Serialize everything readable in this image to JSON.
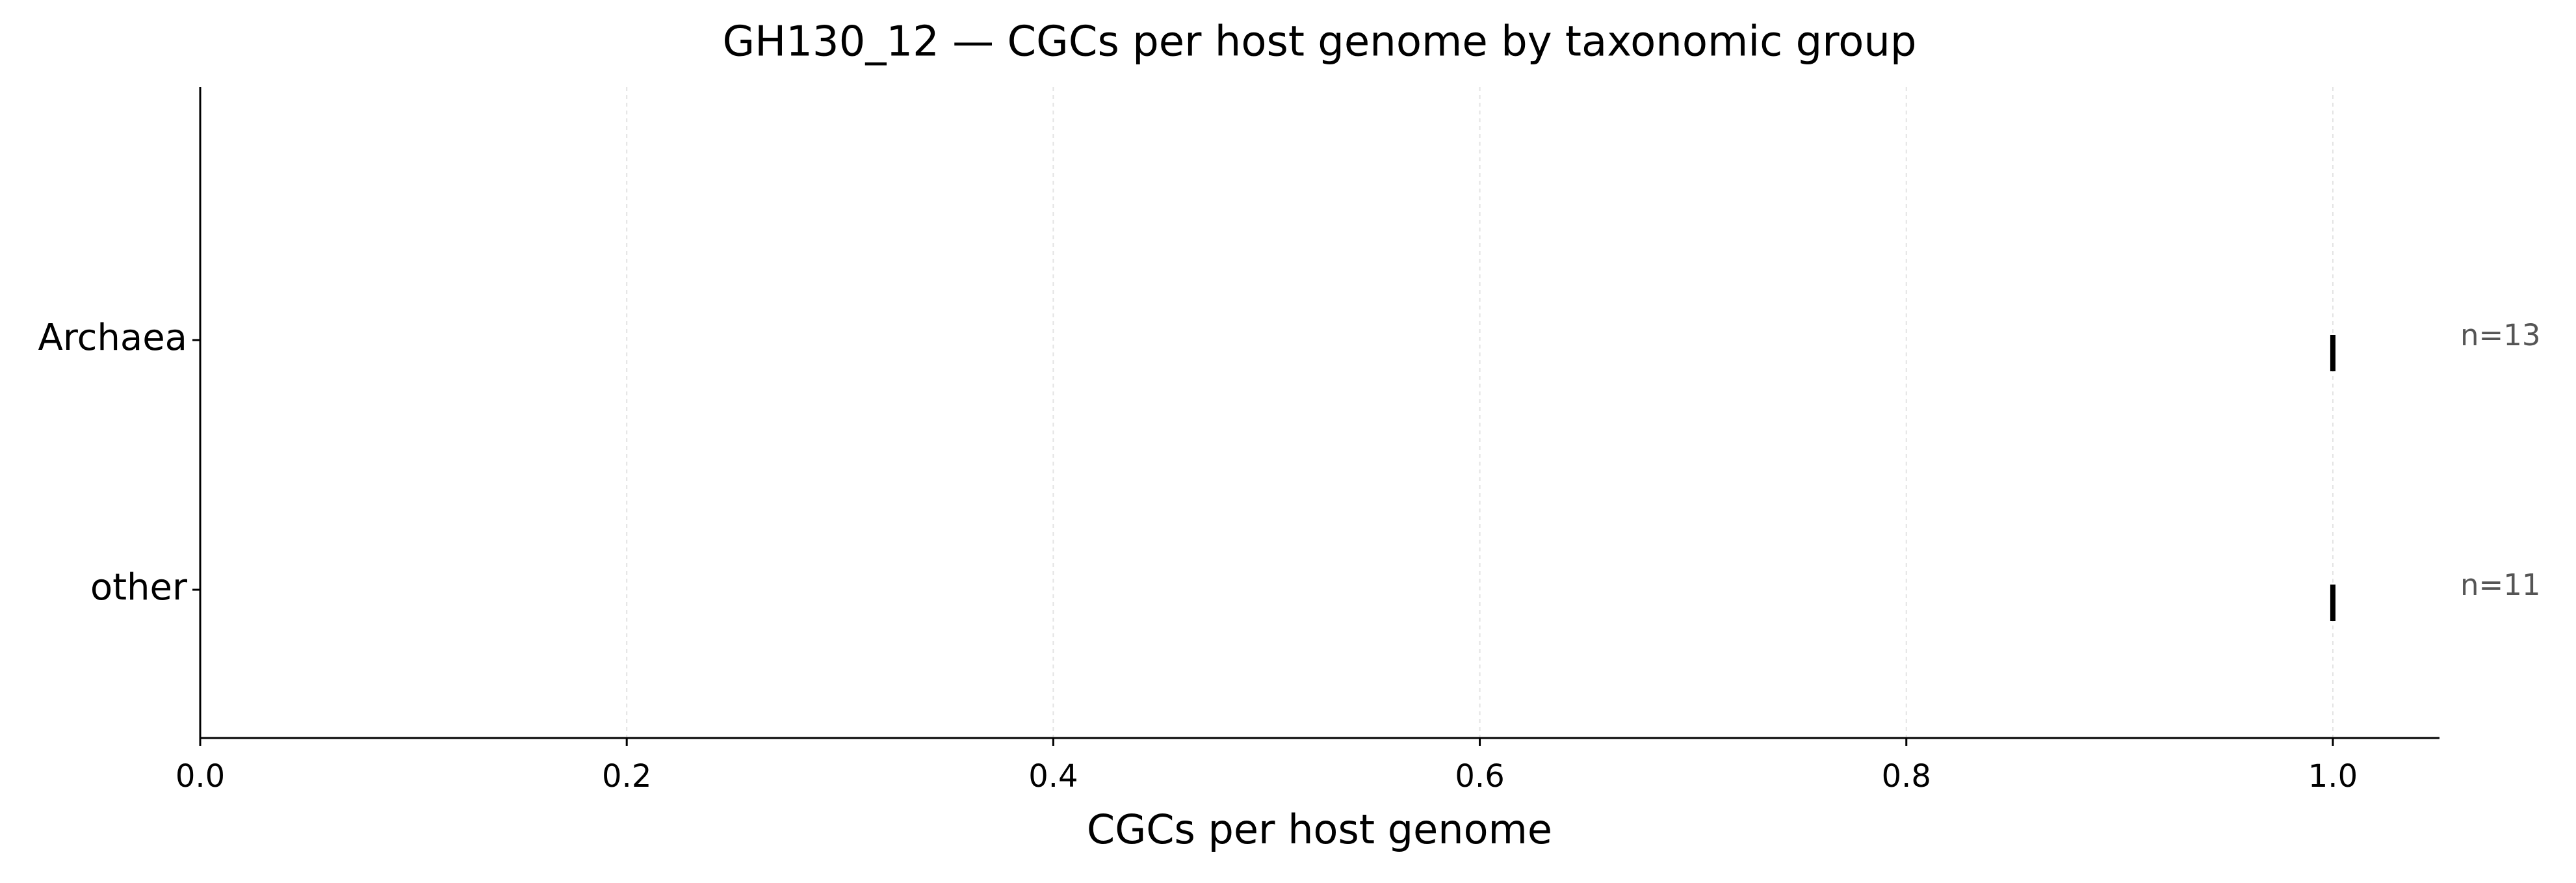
{
  "chart_data": {
    "type": "strip",
    "title": "GH130_12 — CGCs per host genome by taxonomic group",
    "xlabel": "CGCs per host genome",
    "categories": [
      "Archaea",
      "other"
    ],
    "values": [
      1.0,
      1.0
    ],
    "annotations": [
      "n=13",
      "n=11"
    ],
    "color": "#000000",
    "xlim": [
      0,
      1.05
    ],
    "xticks": [
      {
        "value": 0,
        "label": "0.0"
      },
      0.2,
      0.4,
      0.6,
      0.8,
      {
        "value": 1,
        "label": "1.0"
      }
    ],
    "grid": true
  }
}
